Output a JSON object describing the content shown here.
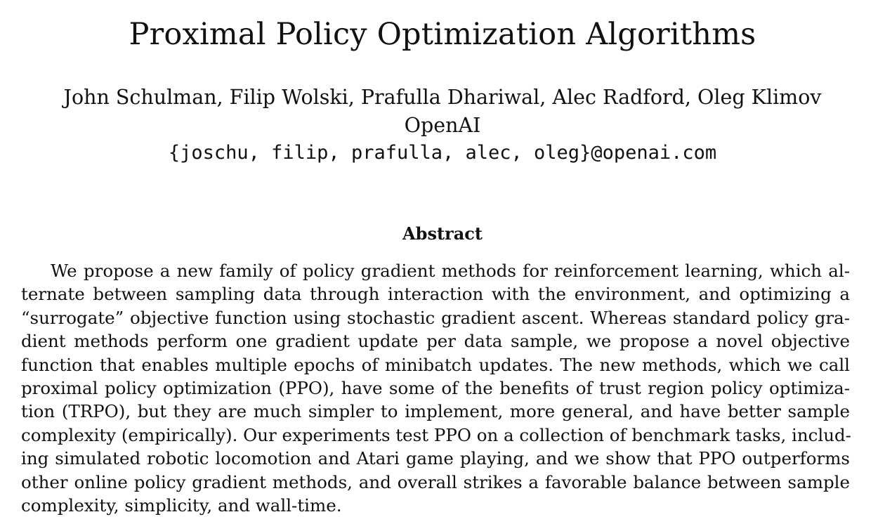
{
  "paper": {
    "title": "Proximal Policy Optimization Algorithms",
    "authors": "John Schulman, Filip Wolski, Prafulla Dhariwal, Alec Radford, Oleg Klimov",
    "affiliation": "OpenAI",
    "email": "{joschu, filip, prafulla, alec, oleg}@openai.com",
    "abstract_heading": "Abstract",
    "abstract_lines": [
      "We propose a new family of policy gradient methods for reinforcement learning, which al-",
      "ternate between sampling data through interaction with the environment, and optimizing a",
      "“surrogate” objective function using stochastic gradient ascent. Whereas standard policy gra-",
      "dient methods perform one gradient update per data sample, we propose a novel objective",
      "function that enables multiple epochs of minibatch updates. The new methods, which we call",
      "proximal policy optimization (PPO), have some of the benefits of trust region policy optimiza-",
      "tion (TRPO), but they are much simpler to implement, more general, and have better sample",
      "complexity (empirically). Our experiments test PPO on a collection of benchmark tasks, includ-",
      "ing simulated robotic locomotion and Atari game playing, and we show that PPO outperforms",
      "other online policy gradient methods, and overall strikes a favorable balance between sample",
      "complexity, simplicity, and wall-time."
    ]
  }
}
